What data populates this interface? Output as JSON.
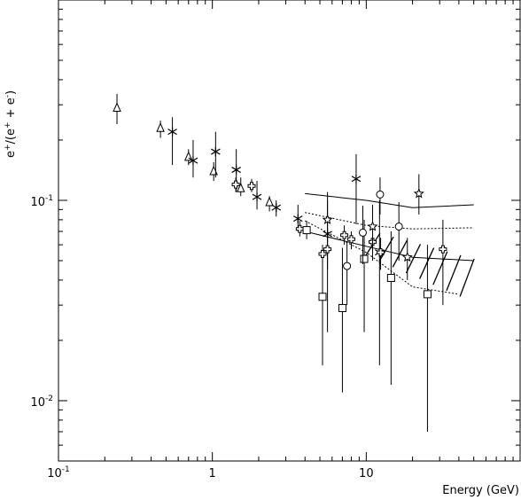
{
  "chart_data": {
    "type": "scatter",
    "xlabel": "Energy (GeV)",
    "ylabel": "e+/(e+ + e-)",
    "xscale": "log",
    "yscale": "log",
    "xlim": [
      0.1,
      100
    ],
    "ylim": [
      0.005,
      1.0
    ],
    "xticks": [
      {
        "value": 0.1,
        "base": "10",
        "exp": "-1"
      },
      {
        "value": 1,
        "base": "1",
        "exp": ""
      },
      {
        "value": 10,
        "base": "10",
        "exp": ""
      }
    ],
    "yticks": [
      {
        "value": 0.1,
        "base": "10",
        "exp": "-1"
      },
      {
        "value": 0.01,
        "base": "10",
        "exp": "-2"
      }
    ],
    "ylabel_parts": {
      "a": "e",
      "b": "+",
      "c": "/(e",
      "d": "+",
      "e": " + e",
      "f": "-",
      "g": ")"
    },
    "series": [
      {
        "marker": "triangle",
        "points": [
          {
            "x": 0.24,
            "y": 0.29,
            "lo": 0.24,
            "hi": 0.34
          },
          {
            "x": 0.46,
            "y": 0.23,
            "lo": 0.205,
            "hi": 0.25
          },
          {
            "x": 0.7,
            "y": 0.165,
            "lo": 0.15,
            "hi": 0.18
          },
          {
            "x": 1.02,
            "y": 0.14,
            "lo": 0.125,
            "hi": 0.155
          },
          {
            "x": 1.53,
            "y": 0.115,
            "lo": 0.105,
            "hi": 0.13
          },
          {
            "x": 2.35,
            "y": 0.098,
            "lo": 0.088,
            "hi": 0.105
          }
        ]
      },
      {
        "marker": "asterisk",
        "points": [
          {
            "x": 0.55,
            "y": 0.22,
            "lo": 0.15,
            "hi": 0.26
          },
          {
            "x": 0.75,
            "y": 0.158,
            "lo": 0.13,
            "hi": 0.2
          },
          {
            "x": 1.05,
            "y": 0.175,
            "lo": 0.13,
            "hi": 0.22
          },
          {
            "x": 1.43,
            "y": 0.142,
            "lo": 0.11,
            "hi": 0.18
          },
          {
            "x": 1.95,
            "y": 0.104,
            "lo": 0.09,
            "hi": 0.125
          },
          {
            "x": 2.6,
            "y": 0.092,
            "lo": 0.083,
            "hi": 0.1
          },
          {
            "x": 3.6,
            "y": 0.081,
            "lo": 0.07,
            "hi": 0.095
          },
          {
            "x": 5.6,
            "y": 0.068,
            "lo": 0.022,
            "hi": 0.11
          },
          {
            "x": 8.6,
            "y": 0.128,
            "lo": 0.076,
            "hi": 0.17
          },
          {
            "x": 12.2,
            "y": 0.055,
            "lo": 0.015,
            "hi": 0.1
          }
        ]
      },
      {
        "marker": "cross",
        "points": [
          {
            "x": 1.42,
            "y": 0.12,
            "lo": 0.11,
            "hi": 0.13
          },
          {
            "x": 1.8,
            "y": 0.118,
            "lo": 0.11,
            "hi": 0.128
          },
          {
            "x": 3.7,
            "y": 0.072,
            "lo": 0.066,
            "hi": 0.079
          },
          {
            "x": 5.2,
            "y": 0.054,
            "lo": 0.04,
            "hi": 0.06
          },
          {
            "x": 5.6,
            "y": 0.057,
            "lo": 0.045,
            "hi": 0.07
          },
          {
            "x": 7.2,
            "y": 0.067,
            "lo": 0.06,
            "hi": 0.075
          },
          {
            "x": 8.0,
            "y": 0.064,
            "lo": 0.057,
            "hi": 0.07
          },
          {
            "x": 11.0,
            "y": 0.062,
            "lo": 0.05,
            "hi": 0.075
          },
          {
            "x": 12.4,
            "y": 0.055,
            "lo": 0.045,
            "hi": 0.065
          },
          {
            "x": 31.5,
            "y": 0.057,
            "lo": 0.03,
            "hi": 0.08
          }
        ]
      },
      {
        "marker": "square",
        "points": [
          {
            "x": 4.1,
            "y": 0.071,
            "lo": 0.064,
            "hi": 0.079
          },
          {
            "x": 5.2,
            "y": 0.033,
            "lo": 0.015,
            "hi": 0.052
          },
          {
            "x": 7.0,
            "y": 0.029,
            "lo": 0.011,
            "hi": 0.058
          },
          {
            "x": 9.7,
            "y": 0.051,
            "lo": 0.022,
            "hi": 0.08
          },
          {
            "x": 14.5,
            "y": 0.041,
            "lo": 0.012,
            "hi": 0.07
          },
          {
            "x": 25.0,
            "y": 0.034,
            "lo": 0.007,
            "hi": 0.06
          }
        ]
      },
      {
        "marker": "circle",
        "points": [
          {
            "x": 7.5,
            "y": 0.047,
            "lo": 0.03,
            "hi": 0.062
          },
          {
            "x": 9.5,
            "y": 0.069,
            "lo": 0.048,
            "hi": 0.094
          },
          {
            "x": 12.3,
            "y": 0.107,
            "lo": 0.085,
            "hi": 0.13
          },
          {
            "x": 16.3,
            "y": 0.074,
            "lo": 0.05,
            "hi": 0.098
          }
        ]
      },
      {
        "marker": "star",
        "points": [
          {
            "x": 5.6,
            "y": 0.08,
            "lo": 0.062,
            "hi": 0.1
          },
          {
            "x": 11.0,
            "y": 0.074,
            "lo": 0.055,
            "hi": 0.095
          },
          {
            "x": 18.5,
            "y": 0.052,
            "lo": 0.04,
            "hi": 0.065
          },
          {
            "x": 22.0,
            "y": 0.108,
            "lo": 0.085,
            "hi": 0.135
          }
        ]
      }
    ],
    "curves": [
      {
        "style": "solid",
        "points": [
          [
            4.0,
            0.108
          ],
          [
            10.0,
            0.1
          ],
          [
            20.0,
            0.092
          ],
          [
            50.0,
            0.095
          ]
        ]
      },
      {
        "style": "solid",
        "points": [
          [
            4.0,
            0.07
          ],
          [
            10.0,
            0.059
          ],
          [
            20.0,
            0.052
          ],
          [
            50.0,
            0.05
          ]
        ]
      },
      {
        "style": "dotted",
        "points": [
          [
            4.0,
            0.087
          ],
          [
            10.0,
            0.075
          ],
          [
            20.0,
            0.072
          ],
          [
            50.0,
            0.073
          ]
        ]
      },
      {
        "style": "dotted",
        "points": [
          [
            4.0,
            0.079
          ],
          [
            10.0,
            0.055
          ],
          [
            20.0,
            0.037
          ],
          [
            40.0,
            0.034
          ]
        ]
      }
    ],
    "hatch_band": {
      "x": [
        10.0,
        50.0
      ],
      "y_lo": [
        0.055,
        0.032
      ],
      "y_hi": [
        0.07,
        0.05
      ]
    }
  }
}
